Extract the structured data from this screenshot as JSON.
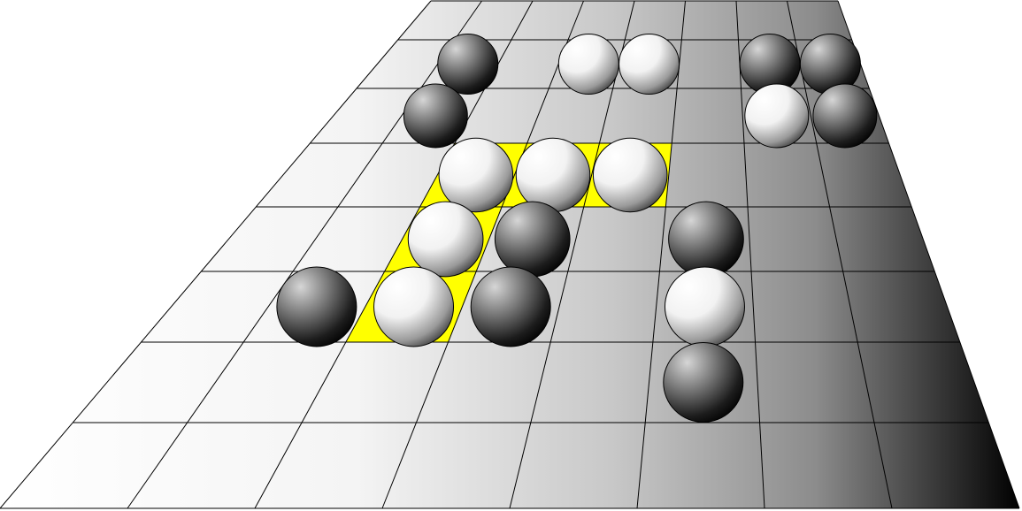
{
  "board": {
    "columns": 8,
    "rows": 8,
    "cell_fill": "#ffffff",
    "gradient_far_color": "#000000",
    "line_color": "#000000",
    "highlight_color": "#ffff00"
  },
  "highlighted_cells": [
    {
      "row": 3,
      "col": 2
    },
    {
      "row": 3,
      "col": 3
    },
    {
      "row": 3,
      "col": 4
    },
    {
      "row": 4,
      "col": 2
    },
    {
      "row": 5,
      "col": 2
    }
  ],
  "stones": [
    {
      "row": 1,
      "col": 1,
      "color": "black"
    },
    {
      "row": 1,
      "col": 3,
      "color": "white"
    },
    {
      "row": 1,
      "col": 4,
      "color": "white"
    },
    {
      "row": 1,
      "col": 6,
      "color": "black"
    },
    {
      "row": 1,
      "col": 7,
      "color": "black"
    },
    {
      "row": 2,
      "col": 1,
      "color": "black"
    },
    {
      "row": 2,
      "col": 6,
      "color": "white"
    },
    {
      "row": 2,
      "col": 7,
      "color": "black"
    },
    {
      "row": 3,
      "col": 2,
      "color": "white"
    },
    {
      "row": 3,
      "col": 3,
      "color": "white"
    },
    {
      "row": 3,
      "col": 4,
      "color": "white"
    },
    {
      "row": 4,
      "col": 2,
      "color": "white"
    },
    {
      "row": 4,
      "col": 3,
      "color": "black"
    },
    {
      "row": 4,
      "col": 5,
      "color": "black"
    },
    {
      "row": 5,
      "col": 1,
      "color": "black"
    },
    {
      "row": 5,
      "col": 2,
      "color": "white"
    },
    {
      "row": 5,
      "col": 3,
      "color": "black"
    },
    {
      "row": 5,
      "col": 5,
      "color": "white"
    },
    {
      "row": 6,
      "col": 5,
      "color": "black"
    }
  ]
}
